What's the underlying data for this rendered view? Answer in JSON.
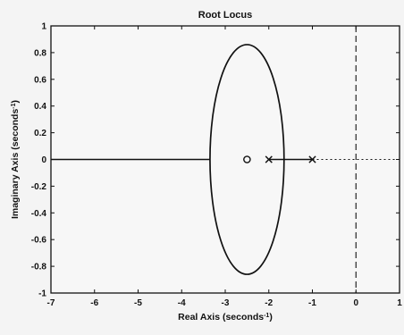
{
  "chart_data": {
    "type": "scatter",
    "title": "Root Locus",
    "xlabel": "Real Axis (seconds",
    "xlabel_unit_sup": "-1",
    "xlabel_suffix": ")",
    "ylabel": "Imaginary Axis (seconds",
    "ylabel_unit_sup": "-1",
    "ylabel_suffix": ")",
    "xlim": [
      -7,
      1
    ],
    "ylim": [
      -1,
      1
    ],
    "xticks": [
      -7,
      -6,
      -5,
      -4,
      -3,
      -2,
      -1,
      0,
      1
    ],
    "yticks": [
      -1,
      -0.8,
      -0.6,
      -0.4,
      -0.2,
      0,
      0.2,
      0.4,
      0.6,
      0.8,
      1
    ],
    "xtick_labels": [
      "-7",
      "-6",
      "-5",
      "-4",
      "-3",
      "-2",
      "-1",
      "0",
      "1"
    ],
    "ytick_labels": [
      "-1",
      "-0.8",
      "-0.6",
      "-0.4",
      "-0.2",
      "0",
      "0.2",
      "0.4",
      "0.6",
      "0.8",
      "1"
    ],
    "grid": false,
    "poles": [
      {
        "x": -2,
        "y": 0
      },
      {
        "x": -1,
        "y": 0
      }
    ],
    "zeros": [
      {
        "x": -2.5,
        "y": 0
      }
    ],
    "locus_ellipse": {
      "center_x": -2.5,
      "center_y": 0,
      "semi_axis_x": 0.85,
      "semi_axis_y": 0.86
    },
    "locus_real_axis_segments": [
      [
        -7,
        -3.35
      ],
      [
        -2,
        -1
      ]
    ],
    "vertical_dashed_line_x": 0,
    "colors": {
      "line": "#111111",
      "background": "#f4f4f4"
    }
  }
}
